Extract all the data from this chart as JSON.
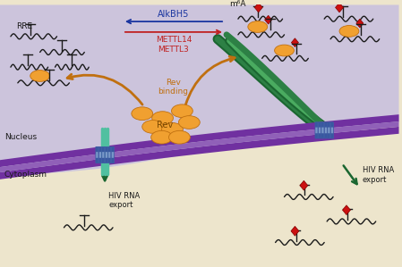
{
  "bg_nucleus": "#ccc4dc",
  "bg_cytoplasm": "#ede5cc",
  "purple_mem_dark": "#7030a0",
  "purple_mem_mid": "#9060b8",
  "green_dark": "#1a6630",
  "green_mid": "#2d8045",
  "green_light": "#4aab60",
  "orange_rev": "#f0a030",
  "orange_dark": "#c07010",
  "red_diamond": "#cc1010",
  "blue_pore": "#3858a0",
  "blue_pore_light": "#7898c8",
  "text_blue": "#1a35a0",
  "text_red": "#c02020",
  "text_dark": "#1a1a1a",
  "text_orange": "#c07010",
  "alkbh5_text": "AlkBH5",
  "mettl14_text": "METTL14",
  "mettl3_text": "METTL3",
  "m6a_text": "m⁶A",
  "rre_text": "RRE",
  "rev_text": "Rev",
  "rev_binding_text": "Rev\nbinding",
  "nucleus_text": "Nucleus",
  "cytoplasm_text": "Cytoplasm",
  "hiv_export_text": "HIV RNA\nexport"
}
